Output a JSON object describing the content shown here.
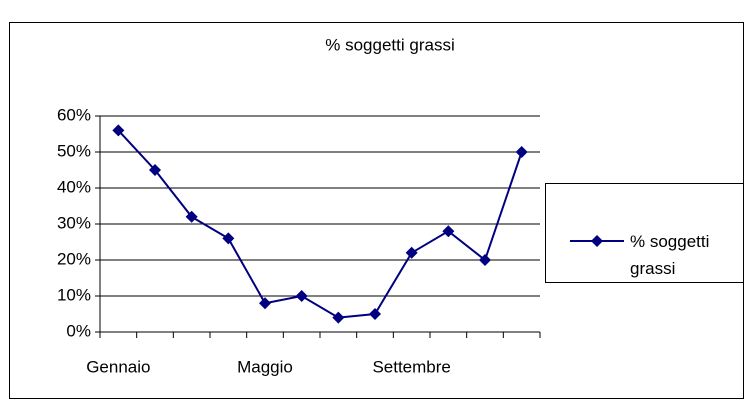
{
  "chart_data": {
    "type": "line",
    "title": "% soggetti grassi",
    "categories": [
      "Gennaio",
      null,
      null,
      null,
      "Maggio",
      null,
      null,
      null,
      "Settembre",
      null,
      null,
      null
    ],
    "series": [
      {
        "name": "% soggetti grassi",
        "color": "#000080",
        "values": [
          56,
          45,
          32,
          26,
          8,
          10,
          4,
          5,
          22,
          28,
          20,
          50
        ]
      }
    ],
    "ylim": [
      0,
      60
    ],
    "yticks": [
      {
        "value": 0,
        "label": "0%"
      },
      {
        "value": 10,
        "label": "10%"
      },
      {
        "value": 20,
        "label": "20%"
      },
      {
        "value": 30,
        "label": "30%"
      },
      {
        "value": 40,
        "label": "40%"
      },
      {
        "value": 50,
        "label": "50%"
      },
      {
        "value": 60,
        "label": "60%"
      }
    ],
    "grid": true,
    "legend": "right"
  }
}
